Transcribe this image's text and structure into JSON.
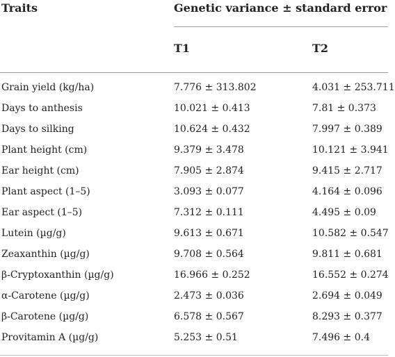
{
  "header": {
    "traits": "Traits",
    "group": "Genetic variance ± standard error",
    "col1": "T1",
    "col2": "T2"
  },
  "rows": [
    {
      "trait": "Grain yield (kg/ha)",
      "t1": "7.776 ± 313.802",
      "t2": "4.031 ± 253.711"
    },
    {
      "trait": "Days to anthesis",
      "t1": "10.021 ± 0.413",
      "t2": "7.81 ± 0.373"
    },
    {
      "trait": "Days to silking",
      "t1": "10.624 ± 0.432",
      "t2": "7.997 ± 0.389"
    },
    {
      "trait": "Plant height (cm)",
      "t1": "9.379 ± 3.478",
      "t2": "10.121 ± 3.941"
    },
    {
      "trait": "Ear height (cm)",
      "t1": "7.905 ± 2.874",
      "t2": "9.415 ± 2.717"
    },
    {
      "trait": "Plant aspect (1–5)",
      "t1": "3.093 ± 0.077",
      "t2": "4.164 ± 0.096"
    },
    {
      "trait": "Ear aspect (1–5)",
      "t1": "7.312 ± 0.111",
      "t2": "4.495 ± 0.09"
    },
    {
      "trait": "Lutein (µg/g)",
      "t1": "9.613 ± 0.671",
      "t2": "10.582 ± 0.547"
    },
    {
      "trait": "Zeaxanthin (µg/g)",
      "t1": "9.708 ± 0.564",
      "t2": "9.811 ± 0.681"
    },
    {
      "trait": "β-Cryptoxanthin (µg/g)",
      "t1": "16.966 ± 0.252",
      "t2": "16.552 ± 0.274"
    },
    {
      "trait": "α-Carotene (µg/g)",
      "t1": "2.473 ± 0.036",
      "t2": "2.694 ± 0.049"
    },
    {
      "trait": "β-Carotene (µg/g)",
      "t1": "6.578 ± 0.567",
      "t2": "8.293 ± 0.377"
    },
    {
      "trait": "Provitamin A (µg/g)",
      "t1": "5.253 ± 0.51",
      "t2": "7.496 ± 0.4"
    }
  ]
}
